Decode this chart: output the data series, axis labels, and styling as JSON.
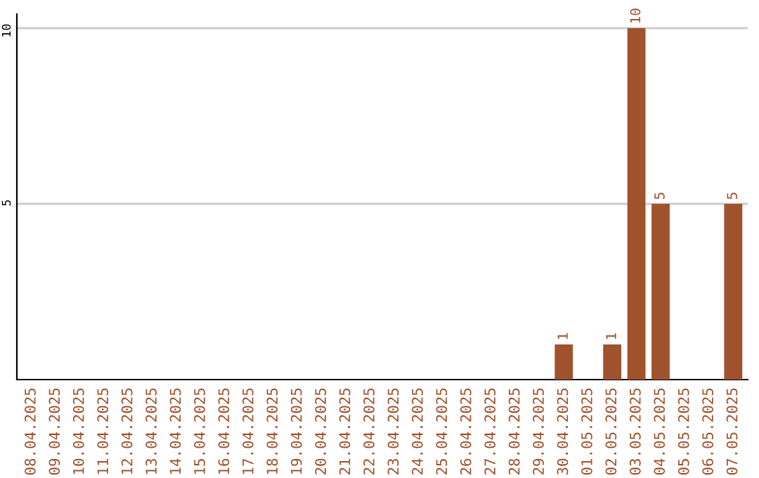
{
  "chart_data": {
    "type": "bar",
    "categories": [
      "08.04.2025",
      "09.04.2025",
      "10.04.2025",
      "11.04.2025",
      "12.04.2025",
      "13.04.2025",
      "14.04.2025",
      "15.04.2025",
      "16.04.2025",
      "17.04.2025",
      "18.04.2025",
      "19.04.2025",
      "20.04.2025",
      "21.04.2025",
      "22.04.2025",
      "23.04.2025",
      "24.04.2025",
      "25.04.2025",
      "26.04.2025",
      "27.04.2025",
      "28.04.2025",
      "29.04.2025",
      "30.04.2025",
      "01.05.2025",
      "02.05.2025",
      "03.05.2025",
      "04.05.2025",
      "05.05.2025",
      "06.05.2025",
      "07.05.2025"
    ],
    "values": [
      0,
      0,
      0,
      0,
      0,
      0,
      0,
      0,
      0,
      0,
      0,
      0,
      0,
      0,
      0,
      0,
      0,
      0,
      0,
      0,
      0,
      0,
      1,
      0,
      1,
      10,
      5,
      0,
      0,
      5
    ],
    "value_labels": [
      null,
      null,
      null,
      null,
      null,
      null,
      null,
      null,
      null,
      null,
      null,
      null,
      null,
      null,
      null,
      null,
      null,
      null,
      null,
      null,
      null,
      null,
      "1",
      null,
      "1",
      "10",
      "5",
      null,
      null,
      "5"
    ],
    "color": "#a0522d",
    "ylim": [
      0,
      10.4
    ],
    "yticks": [
      5,
      10
    ],
    "grid": "y",
    "legend": false
  }
}
